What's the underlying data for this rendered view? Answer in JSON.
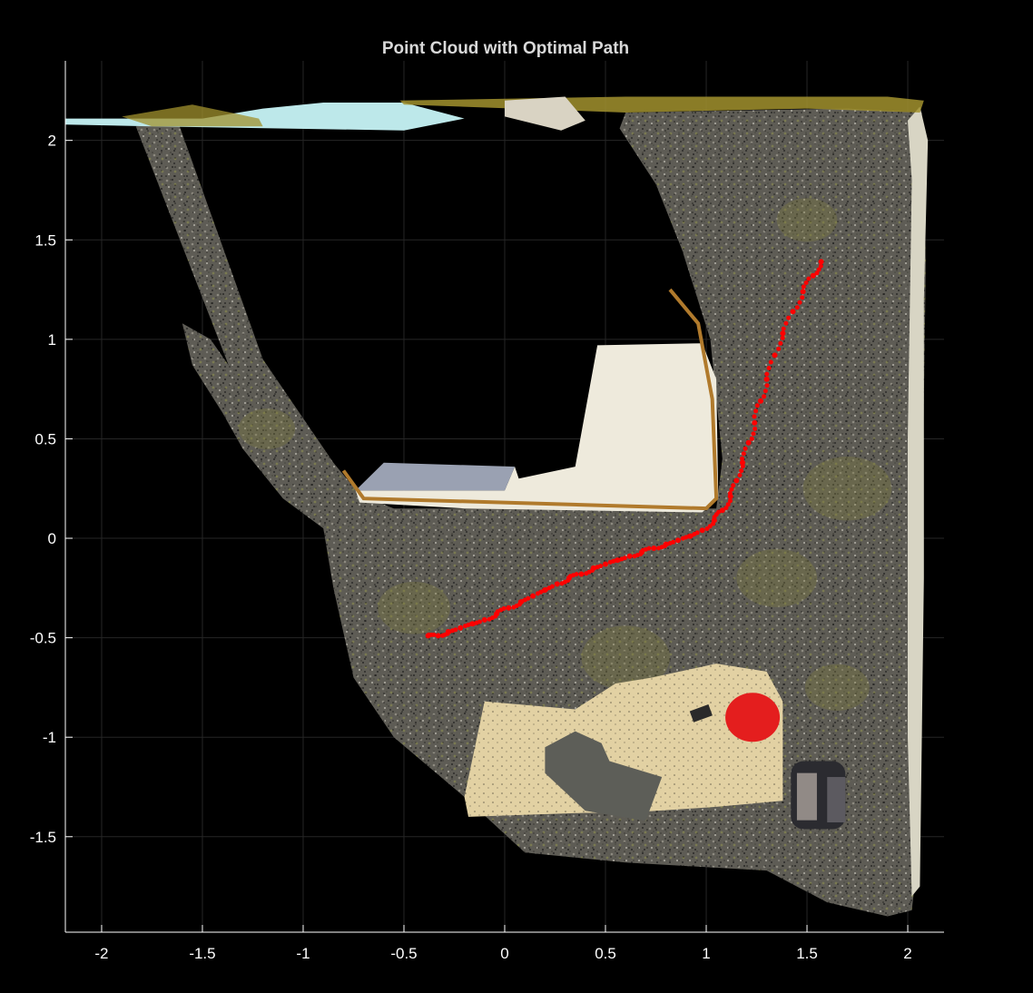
{
  "chart_data": {
    "type": "scatter",
    "title": "Point Cloud with Optimal Path",
    "xlabel": "",
    "ylabel": "",
    "xlim": [
      -2.18,
      2.18
    ],
    "ylim": [
      -1.98,
      2.4
    ],
    "xticks": [
      -2,
      -1.5,
      -1,
      -0.5,
      0,
      0.5,
      1,
      1.5,
      2
    ],
    "xtick_labels": [
      "-2",
      "-1.5",
      "-1",
      "-0.5",
      "0",
      "0.5",
      "1",
      "1.5",
      "2"
    ],
    "yticks": [
      -1.5,
      -1,
      -0.5,
      0,
      0.5,
      1,
      1.5,
      2
    ],
    "ytick_labels": [
      "-1.5",
      "-1",
      "-0.5",
      "0",
      "0.5",
      "1",
      "1.5",
      "2"
    ],
    "grid": true,
    "background": "#000000",
    "axis_color": "#ffffff",
    "series": [
      {
        "color": "#ff0000",
        "marker": "dot",
        "points": [
          [
            -0.38,
            -0.49
          ],
          [
            -0.33,
            -0.49
          ],
          [
            -0.28,
            -0.47
          ],
          [
            -0.22,
            -0.45
          ],
          [
            -0.16,
            -0.43
          ],
          [
            -0.1,
            -0.41
          ],
          [
            -0.04,
            -0.38
          ],
          [
            0.02,
            -0.35
          ],
          [
            0.08,
            -0.32
          ],
          [
            0.14,
            -0.29
          ],
          [
            0.2,
            -0.26
          ],
          [
            0.26,
            -0.23
          ],
          [
            0.32,
            -0.2
          ],
          [
            0.38,
            -0.18
          ],
          [
            0.44,
            -0.15
          ],
          [
            0.5,
            -0.13
          ],
          [
            0.56,
            -0.11
          ],
          [
            0.62,
            -0.09
          ],
          [
            0.68,
            -0.07
          ],
          [
            0.74,
            -0.05
          ],
          [
            0.8,
            -0.03
          ],
          [
            0.86,
            -0.01
          ],
          [
            0.92,
            0.01
          ],
          [
            0.98,
            0.04
          ],
          [
            1.04,
            0.09
          ],
          [
            1.08,
            0.14
          ],
          [
            1.12,
            0.21
          ],
          [
            1.15,
            0.29
          ],
          [
            1.18,
            0.38
          ],
          [
            1.21,
            0.48
          ],
          [
            1.24,
            0.58
          ],
          [
            1.27,
            0.69
          ],
          [
            1.3,
            0.8
          ],
          [
            1.34,
            0.92
          ],
          [
            1.38,
            1.03
          ],
          [
            1.43,
            1.14
          ],
          [
            1.48,
            1.24
          ],
          [
            1.53,
            1.32
          ],
          [
            1.57,
            1.39
          ]
        ]
      }
    ],
    "scene_colors": {
      "floor": "#5e5c55",
      "lichen": "#7f7a40",
      "box": "#d8cfb2",
      "mat": "#e2d1a3",
      "tub": "#eeeadc",
      "water": "#bde8ea",
      "edge": "#a2922e",
      "wall": "#d8d5c4",
      "helmet": "#e41e1e",
      "sign": "#5d5e58",
      "block": "#918a86"
    }
  }
}
